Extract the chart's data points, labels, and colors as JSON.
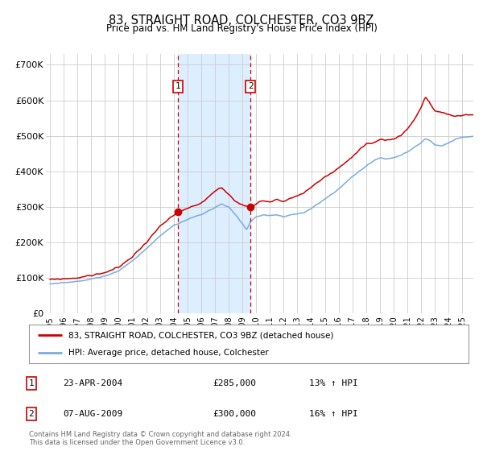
{
  "title": "83, STRAIGHT ROAD, COLCHESTER, CO3 9BZ",
  "subtitle": "Price paid vs. HM Land Registry's House Price Index (HPI)",
  "title_fontsize": 10.5,
  "subtitle_fontsize": 8.5,
  "ylabel_ticks": [
    "£0",
    "£100K",
    "£200K",
    "£300K",
    "£400K",
    "£500K",
    "£600K",
    "£700K"
  ],
  "ytick_vals": [
    0,
    100000,
    200000,
    300000,
    400000,
    500000,
    600000,
    700000
  ],
  "ylim": [
    0,
    730000
  ],
  "xlim_start": 1994.7,
  "xlim_end": 2025.8,
  "x_years": [
    1995,
    1996,
    1997,
    1998,
    1999,
    2000,
    2001,
    2002,
    2003,
    2004,
    2005,
    2006,
    2007,
    2008,
    2009,
    2010,
    2011,
    2012,
    2013,
    2014,
    2015,
    2016,
    2017,
    2018,
    2019,
    2020,
    2021,
    2022,
    2023,
    2024,
    2025
  ],
  "red_line_color": "#cc0000",
  "blue_line_color": "#7aacdc",
  "shade_color": "#ddeeff",
  "grid_color": "#cccccc",
  "marker1_x": 2004.31,
  "marker1_y": 285000,
  "marker2_x": 2009.59,
  "marker2_y": 300000,
  "vline1_x": 2004.31,
  "vline2_x": 2009.59,
  "legend_label_red": "83, STRAIGHT ROAD, COLCHESTER, CO3 9BZ (detached house)",
  "legend_label_blue": "HPI: Average price, detached house, Colchester",
  "table_rows": [
    {
      "num": "1",
      "date": "23-APR-2004",
      "price": "£285,000",
      "hpi": "13% ↑ HPI"
    },
    {
      "num": "2",
      "date": "07-AUG-2009",
      "price": "£300,000",
      "hpi": "16% ↑ HPI"
    }
  ],
  "footnote": "Contains HM Land Registry data © Crown copyright and database right 2024.\nThis data is licensed under the Open Government Licence v3.0.",
  "bg_color": "#ffffff"
}
